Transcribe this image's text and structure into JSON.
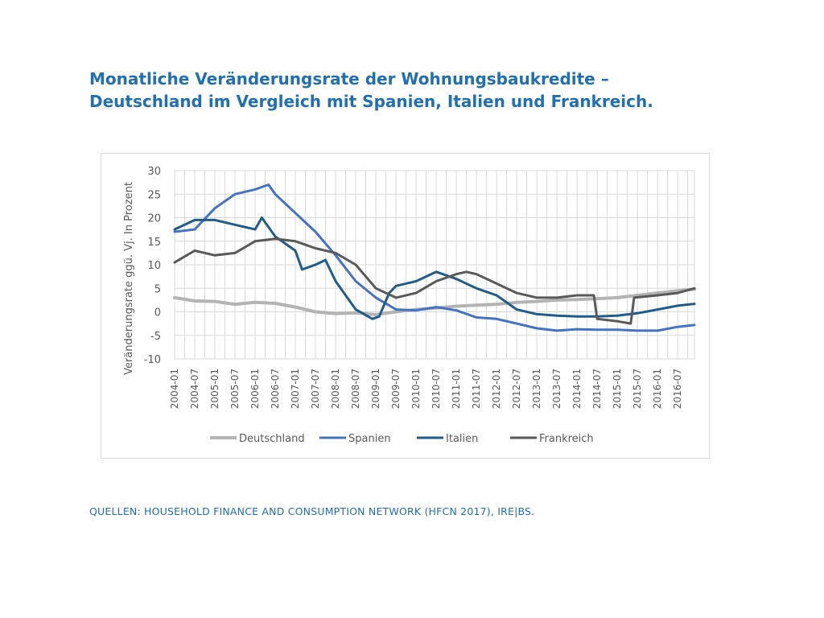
{
  "slide": {
    "title_line1": "Monatliche Veränderungsrate der Wohnungsbaukredite –",
    "title_line2": "Deutschland im Vergleich mit Spanien, Italien und Frankreich.",
    "source": "QUELLEN: HOUSEHOLD FINANCE AND CONSUMPTION NETWORK (HFCN 2017), IRE|BS."
  },
  "colors": {
    "title": "#1f6fb2",
    "grid": "#d9d9d9"
  },
  "chart_data": {
    "type": "line",
    "title": "",
    "xlabel": "",
    "ylabel": "Veränderungsrate ggü. Vj. In Prozent",
    "ylim": [
      -10,
      30
    ],
    "yticks": [
      -10,
      -5,
      0,
      5,
      10,
      15,
      20,
      25,
      30
    ],
    "grid": true,
    "legend_position": "bottom",
    "x_start": "2004-01",
    "x_end": "2016-12",
    "xtick_labels": [
      "2004-01",
      "2004-07",
      "2005-01",
      "2005-07",
      "2006-01",
      "2006-07",
      "2007-01",
      "2007-07",
      "2008-01",
      "2008-07",
      "2009-01",
      "2009-07",
      "2010-01",
      "2010-07",
      "2011-01",
      "2011-07",
      "2012-01",
      "2012-07",
      "2013-01",
      "2013-07",
      "2014-01",
      "2014-07",
      "2015-01",
      "2015-07",
      "2016-01",
      "2016-07"
    ],
    "series": [
      {
        "name": "Deutschland",
        "color": "#b3b3b3",
        "points": [
          [
            "2004-01",
            3
          ],
          [
            "2004-07",
            2.3
          ],
          [
            "2005-01",
            2.2
          ],
          [
            "2005-07",
            1.6
          ],
          [
            "2006-01",
            2
          ],
          [
            "2006-07",
            1.8
          ],
          [
            "2007-01",
            1
          ],
          [
            "2007-07",
            0
          ],
          [
            "2008-01",
            -0.4
          ],
          [
            "2008-07",
            -0.2
          ],
          [
            "2009-01",
            -0.6
          ],
          [
            "2009-07",
            0
          ],
          [
            "2010-01",
            0.5
          ],
          [
            "2010-07",
            0.8
          ],
          [
            "2011-01",
            1.2
          ],
          [
            "2011-07",
            1.4
          ],
          [
            "2012-01",
            1.6
          ],
          [
            "2012-07",
            2
          ],
          [
            "2013-01",
            2.2
          ],
          [
            "2013-07",
            2.5
          ],
          [
            "2014-01",
            2.6
          ],
          [
            "2014-07",
            2.8
          ],
          [
            "2015-01",
            3
          ],
          [
            "2015-07",
            3.5
          ],
          [
            "2016-01",
            4
          ],
          [
            "2016-07",
            4.5
          ],
          [
            "2016-12",
            4.8
          ]
        ]
      },
      {
        "name": "Spanien",
        "color": "#4472c4",
        "points": [
          [
            "2004-01",
            17
          ],
          [
            "2004-07",
            17.5
          ],
          [
            "2005-01",
            22
          ],
          [
            "2005-07",
            25
          ],
          [
            "2006-01",
            26
          ],
          [
            "2006-05",
            27
          ],
          [
            "2006-07",
            25
          ],
          [
            "2007-01",
            21
          ],
          [
            "2007-07",
            17
          ],
          [
            "2008-01",
            12
          ],
          [
            "2008-07",
            6.5
          ],
          [
            "2009-01",
            3
          ],
          [
            "2009-07",
            0.5
          ],
          [
            "2010-01",
            0.3
          ],
          [
            "2010-07",
            1
          ],
          [
            "2011-01",
            0.3
          ],
          [
            "2011-07",
            -1.2
          ],
          [
            "2012-01",
            -1.5
          ],
          [
            "2012-07",
            -2.5
          ],
          [
            "2013-01",
            -3.5
          ],
          [
            "2013-07",
            -4
          ],
          [
            "2014-01",
            -3.7
          ],
          [
            "2014-07",
            -3.8
          ],
          [
            "2015-01",
            -3.8
          ],
          [
            "2015-07",
            -4
          ],
          [
            "2016-01",
            -4
          ],
          [
            "2016-07",
            -3.2
          ],
          [
            "2016-12",
            -2.8
          ]
        ]
      },
      {
        "name": "Italien",
        "color": "#1f5c8b",
        "points": [
          [
            "2004-01",
            17.5
          ],
          [
            "2004-07",
            19.5
          ],
          [
            "2005-01",
            19.5
          ],
          [
            "2005-07",
            18.5
          ],
          [
            "2006-01",
            17.5
          ],
          [
            "2006-03",
            20
          ],
          [
            "2006-07",
            16
          ],
          [
            "2007-01",
            13
          ],
          [
            "2007-03",
            9
          ],
          [
            "2007-07",
            10
          ],
          [
            "2007-10",
            11
          ],
          [
            "2008-01",
            6.5
          ],
          [
            "2008-07",
            0.5
          ],
          [
            "2008-12",
            -1.5
          ],
          [
            "2009-02",
            -1
          ],
          [
            "2009-05",
            4
          ],
          [
            "2009-07",
            5.5
          ],
          [
            "2010-01",
            6.5
          ],
          [
            "2010-07",
            8.5
          ],
          [
            "2011-01",
            7
          ],
          [
            "2011-07",
            5
          ],
          [
            "2012-01",
            3.5
          ],
          [
            "2012-07",
            0.5
          ],
          [
            "2013-01",
            -0.5
          ],
          [
            "2013-07",
            -0.8
          ],
          [
            "2014-01",
            -1
          ],
          [
            "2014-07",
            -1
          ],
          [
            "2015-01",
            -0.8
          ],
          [
            "2015-07",
            -0.3
          ],
          [
            "2016-01",
            0.5
          ],
          [
            "2016-07",
            1.3
          ],
          [
            "2016-12",
            1.7
          ]
        ]
      },
      {
        "name": "Frankreich",
        "color": "#595959",
        "points": [
          [
            "2004-01",
            10.5
          ],
          [
            "2004-07",
            13
          ],
          [
            "2005-01",
            12
          ],
          [
            "2005-07",
            12.5
          ],
          [
            "2006-01",
            15
          ],
          [
            "2006-07",
            15.5
          ],
          [
            "2007-01",
            15
          ],
          [
            "2007-07",
            13.5
          ],
          [
            "2008-01",
            12.5
          ],
          [
            "2008-07",
            10
          ],
          [
            "2009-01",
            5
          ],
          [
            "2009-07",
            3
          ],
          [
            "2010-01",
            4
          ],
          [
            "2010-07",
            6.5
          ],
          [
            "2011-01",
            8
          ],
          [
            "2011-04",
            8.5
          ],
          [
            "2011-07",
            8
          ],
          [
            "2012-01",
            6
          ],
          [
            "2012-07",
            4
          ],
          [
            "2013-01",
            3
          ],
          [
            "2013-07",
            3
          ],
          [
            "2014-01",
            3.5
          ],
          [
            "2014-06",
            3.5
          ],
          [
            "2014-07",
            -1.5
          ],
          [
            "2015-01",
            -2
          ],
          [
            "2015-05",
            -2.5
          ],
          [
            "2015-06",
            3
          ],
          [
            "2016-01",
            3.5
          ],
          [
            "2016-07",
            4
          ],
          [
            "2016-12",
            5
          ]
        ]
      }
    ]
  }
}
